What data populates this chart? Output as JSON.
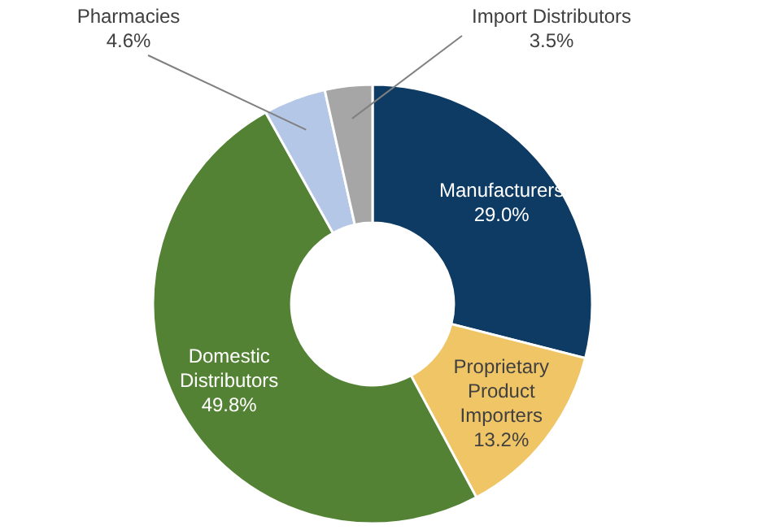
{
  "chart_data": {
    "type": "donut",
    "categories": [
      "Manufacturers",
      "Proprietary Product Importers",
      "Domestic Distributors",
      "Pharmacies",
      "Import Distributors"
    ],
    "values": [
      29.0,
      13.2,
      49.8,
      4.6,
      3.5
    ],
    "value_labels": [
      "29.0%",
      "13.2%",
      "49.8%",
      "4.6%",
      "3.5%"
    ],
    "colors": [
      "#0e3b63",
      "#f0c566",
      "#548235",
      "#b4c7e7",
      "#a6a6a6"
    ]
  }
}
